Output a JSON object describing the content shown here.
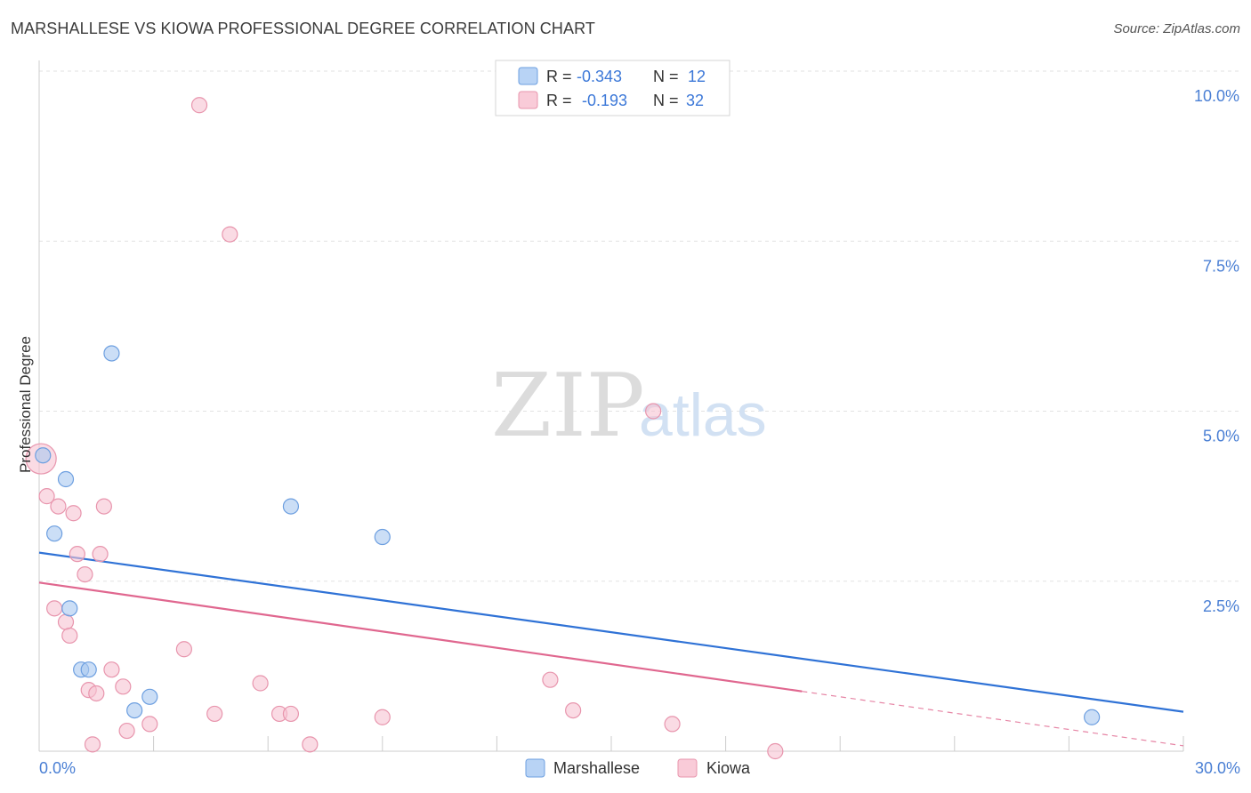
{
  "title": "MARSHALLESE VS KIOWA PROFESSIONAL DEGREE CORRELATION CHART",
  "source": "Source: ZipAtlas.com",
  "watermark": {
    "zip": "ZIP",
    "atlas": "atlas"
  },
  "chart_data": {
    "type": "scatter",
    "title": "MARSHALLESE VS KIOWA PROFESSIONAL DEGREE CORRELATION CHART",
    "xlabel": "",
    "ylabel": "Professional Degree",
    "xlim": [
      0,
      30
    ],
    "ylim": [
      0,
      10
    ],
    "x_tick_labels": [
      "0.0%",
      "30.0%"
    ],
    "y_ticks": [
      2.5,
      5.0,
      7.5,
      10.0
    ],
    "y_tick_labels": [
      "2.5%",
      "5.0%",
      "7.5%",
      "10.0%"
    ],
    "grid": true,
    "legend_position": "top-center",
    "series": [
      {
        "name": "Marshallese",
        "color": "#a9c8f0",
        "stroke": "#6d9fe0",
        "line_color": "#2f72d6",
        "r": "-0.343",
        "n": "12",
        "points": [
          [
            0.1,
            4.35
          ],
          [
            0.7,
            4.0
          ],
          [
            0.4,
            3.2
          ],
          [
            1.9,
            5.85
          ],
          [
            6.6,
            3.6
          ],
          [
            9.0,
            3.15
          ],
          [
            0.8,
            2.1
          ],
          [
            1.1,
            1.2
          ],
          [
            1.3,
            1.2
          ],
          [
            2.9,
            0.8
          ],
          [
            2.5,
            0.6
          ],
          [
            27.6,
            0.5
          ]
        ],
        "trend": {
          "x0": 0,
          "y0": 2.92,
          "x1": 30,
          "y1": 0.58,
          "dash_from": null
        }
      },
      {
        "name": "Kiowa",
        "color": "#f7c3d2",
        "stroke": "#e895ad",
        "line_color": "#e0678f",
        "r": "-0.193",
        "n": "32",
        "points": [
          [
            0.05,
            4.3
          ],
          [
            4.2,
            9.5
          ],
          [
            5.0,
            7.6
          ],
          [
            16.1,
            5.0
          ],
          [
            0.2,
            3.75
          ],
          [
            0.5,
            3.6
          ],
          [
            0.9,
            3.5
          ],
          [
            1.7,
            3.6
          ],
          [
            1.0,
            2.9
          ],
          [
            1.6,
            2.9
          ],
          [
            1.2,
            2.6
          ],
          [
            0.4,
            2.1
          ],
          [
            0.7,
            1.9
          ],
          [
            0.8,
            1.7
          ],
          [
            3.8,
            1.5
          ],
          [
            1.9,
            1.2
          ],
          [
            1.3,
            0.9
          ],
          [
            1.5,
            0.85
          ],
          [
            2.2,
            0.95
          ],
          [
            5.8,
            1.0
          ],
          [
            13.4,
            1.05
          ],
          [
            14.0,
            0.6
          ],
          [
            4.6,
            0.55
          ],
          [
            6.3,
            0.55
          ],
          [
            6.6,
            0.55
          ],
          [
            9.0,
            0.5
          ],
          [
            2.9,
            0.4
          ],
          [
            16.6,
            0.4
          ],
          [
            2.3,
            0.3
          ],
          [
            1.4,
            0.1
          ],
          [
            7.1,
            0.1
          ],
          [
            19.3,
            0.0
          ]
        ],
        "trend": {
          "x0": 0,
          "y0": 2.48,
          "x1": 30,
          "y1": 0.08,
          "dash_from": 20
        }
      }
    ]
  }
}
